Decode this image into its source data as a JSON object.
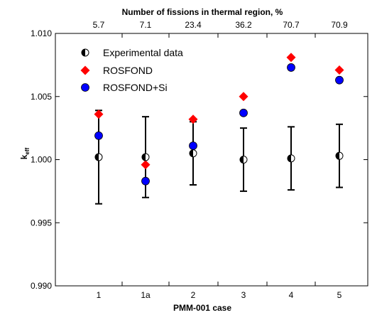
{
  "chart_data": {
    "type": "scatter",
    "title": "",
    "xlabel": "PMM-001 case",
    "ylabel": "k",
    "ylabel_subscript": "eff",
    "top_axis_label": "Number of fissions in thermal region, %",
    "categories": [
      "1",
      "1a",
      "2",
      "3",
      "4",
      "5"
    ],
    "top_tick_labels": [
      "5.7",
      "7.1",
      "23.4",
      "36.2",
      "70.7",
      "70.9"
    ],
    "ylim": [
      0.99,
      1.01
    ],
    "y_ticks": [
      "0.990",
      "0.995",
      "1.000",
      "1.005",
      "1.010"
    ],
    "y_tick_values": [
      0.99,
      0.995,
      1.0,
      1.005,
      1.01
    ],
    "legend_position": "top-left",
    "series": [
      {
        "name": "Experimental data",
        "marker": "half-filled-circle",
        "color": "#000000",
        "values": [
          1.0002,
          1.0002,
          1.0005,
          1.0,
          1.0001,
          1.0003
        ],
        "err_low": [
          0.9965,
          0.997,
          0.998,
          0.9975,
          0.9976,
          0.9978
        ],
        "err_high": [
          1.0039,
          1.0034,
          1.003,
          1.0025,
          1.0026,
          1.0028
        ]
      },
      {
        "name": "ROSFOND",
        "marker": "diamond",
        "color": "#ff0000",
        "values": [
          1.0036,
          0.9996,
          1.0032,
          1.005,
          1.0081,
          1.0071
        ]
      },
      {
        "name": "ROSFOND+Si",
        "marker": "circle",
        "color": "#0000ff",
        "values": [
          1.0019,
          0.9983,
          1.0011,
          1.0037,
          1.0073,
          1.0063
        ]
      }
    ]
  }
}
